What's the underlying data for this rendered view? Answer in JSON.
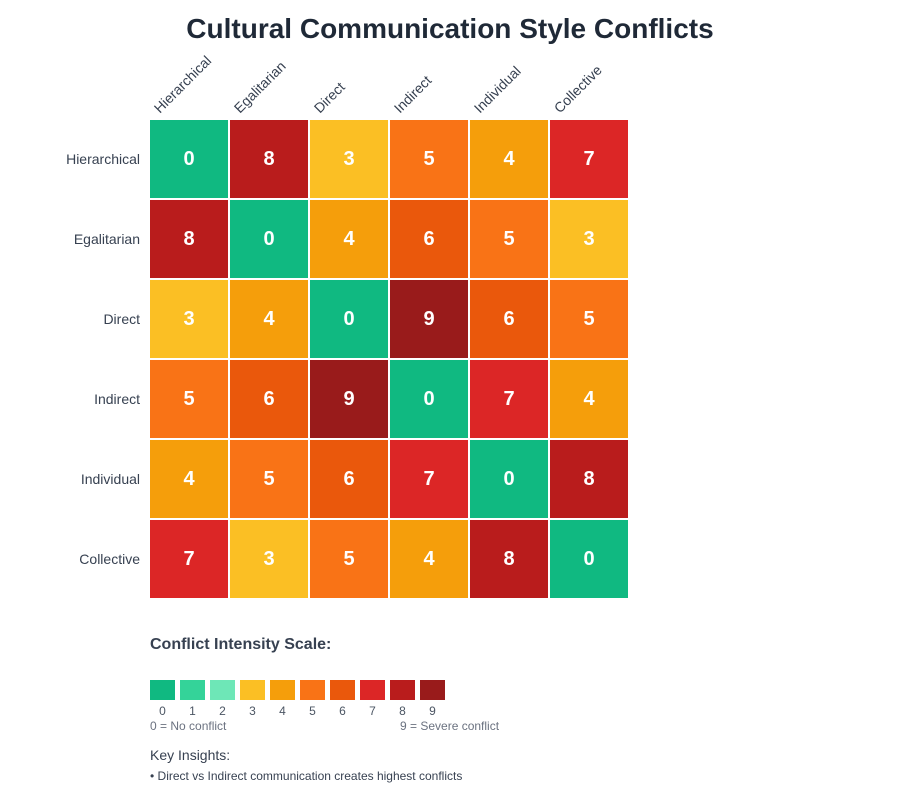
{
  "title": "Cultural Communication Style Conflicts",
  "chart_data": {
    "type": "heatmap",
    "title": "Cultural Communication Style Conflicts",
    "x_labels": [
      "Hierarchical",
      "Egalitarian",
      "Direct",
      "Indirect",
      "Individual",
      "Collective"
    ],
    "y_labels": [
      "Hierarchical",
      "Egalitarian",
      "Direct",
      "Indirect",
      "Individual",
      "Collective"
    ],
    "values": [
      [
        0,
        8,
        3,
        5,
        4,
        7
      ],
      [
        8,
        0,
        4,
        6,
        5,
        3
      ],
      [
        3,
        4,
        0,
        9,
        6,
        5
      ],
      [
        5,
        6,
        9,
        0,
        7,
        4
      ],
      [
        4,
        5,
        6,
        7,
        0,
        8
      ],
      [
        7,
        3,
        5,
        4,
        8,
        0
      ]
    ],
    "range": [
      0,
      9
    ],
    "colorscale": [
      "#10b981",
      "#34d399",
      "#6ee7b7",
      "#fbbf24",
      "#f59e0b",
      "#f97316",
      "#ea580c",
      "#dc2626",
      "#b91c1c",
      "#991b1b"
    ],
    "legend_title": "Conflict Intensity Scale:",
    "legend_ticks": [
      "0",
      "1",
      "2",
      "3",
      "4",
      "5",
      "6",
      "7",
      "8",
      "9"
    ],
    "legend_min_note": "0 = No conflict",
    "legend_max_note": "9 = Severe conflict"
  },
  "legend": {
    "title": "Conflict Intensity Scale:",
    "min_note": "0 = No conflict",
    "max_note": "9 = Severe conflict"
  },
  "insights": {
    "title": "Key Insights:",
    "items": [
      "• Direct vs Indirect communication creates highest conflicts"
    ]
  }
}
